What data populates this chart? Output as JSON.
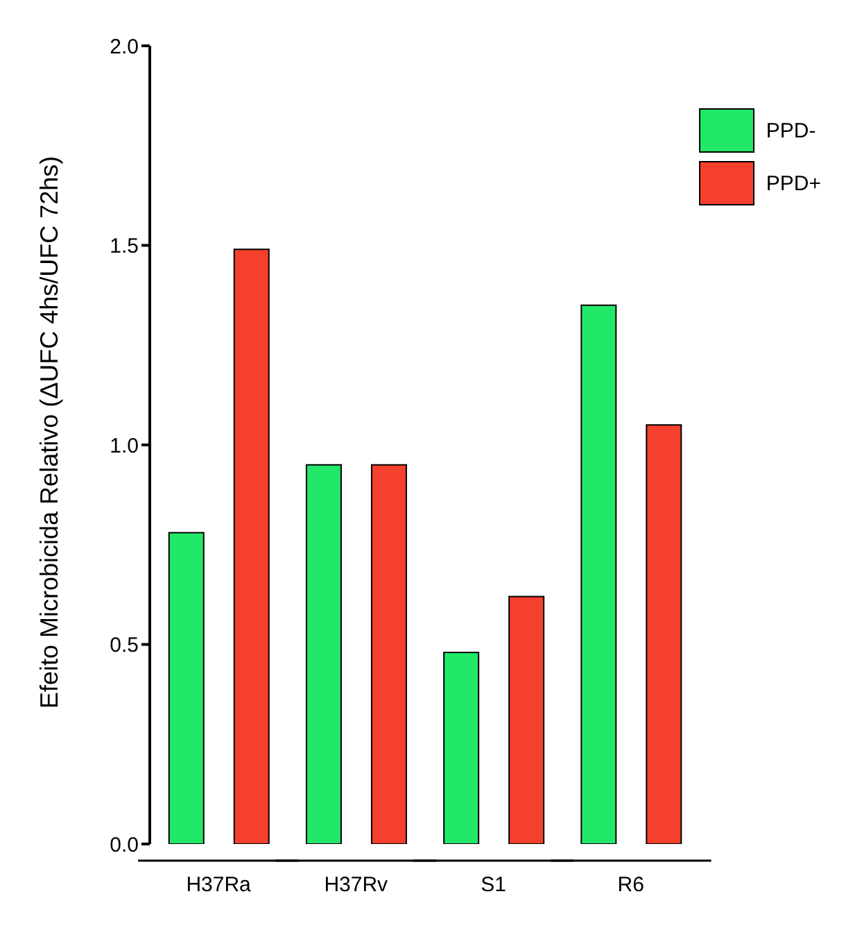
{
  "chart_data": {
    "type": "bar",
    "ylabel": "Efeito Microbicida Relativo (ΔUFC 4hs/UFC 72hs)",
    "categories": [
      "H37Ra",
      "H37Rv",
      "S1",
      "R6"
    ],
    "series": [
      {
        "name": "PPD-",
        "color": "#22e86a",
        "values": [
          0.78,
          0.95,
          0.48,
          1.35
        ]
      },
      {
        "name": "PPD+",
        "color": "#f4402c",
        "values": [
          1.49,
          0.95,
          0.62,
          1.05
        ]
      }
    ],
    "ylim": [
      0,
      2
    ],
    "yticks": [
      {
        "value": 0,
        "label": "0.0"
      },
      0.5,
      {
        "value": 1,
        "label": "1.0"
      },
      1.5,
      {
        "value": 2,
        "label": "2.0"
      }
    ],
    "grid": false,
    "legend": "top right"
  }
}
